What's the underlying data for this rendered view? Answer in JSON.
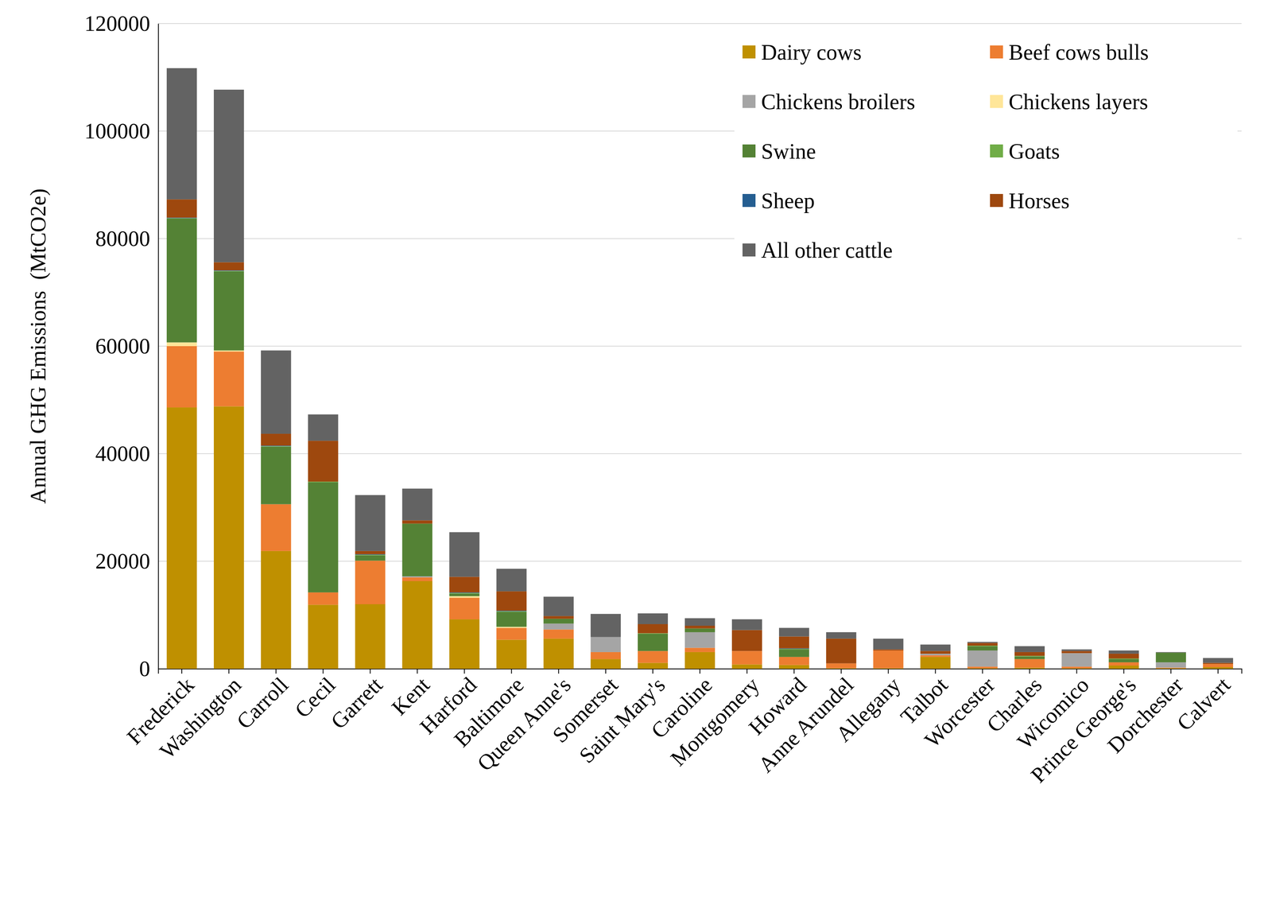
{
  "chart_data": {
    "type": "bar",
    "stacked": true,
    "grid": true,
    "legend": "top-right",
    "y_label": "Annual GHG Emissions  (MtCO2e)",
    "categories": [
      "Frederick",
      "Washington",
      "Carroll",
      "Cecil",
      "Garrett",
      "Kent",
      "Harford",
      "Baltimore",
      "Queen Anne's",
      "Somerset",
      "Saint Mary's",
      "Caroline",
      "Montgomery",
      "Howard",
      "Anne Arundel",
      "Allegany",
      "Talbot",
      "Worcester",
      "Charles",
      "Wicomico",
      "Prince George's",
      "Dorchester",
      "Calvert"
    ],
    "ylim": [
      0,
      120000
    ],
    "yticks": [
      0,
      20000,
      40000,
      60000,
      80000,
      100000,
      120000
    ],
    "series": [
      {
        "name": "Dairy cows",
        "color": "#bf9000",
        "values": [
          48600,
          48800,
          21900,
          11900,
          12000,
          16300,
          9200,
          5400,
          5600,
          1800,
          1100,
          3100,
          800,
          700,
          100,
          100,
          2200,
          100,
          200,
          100,
          600,
          100,
          300
        ]
      },
      {
        "name": "Beef cows bulls",
        "color": "#ed7d31",
        "values": [
          11400,
          10200,
          8700,
          2300,
          8100,
          700,
          4000,
          2200,
          1700,
          1300,
          2200,
          800,
          2500,
          1500,
          900,
          3300,
          300,
          300,
          1600,
          300,
          600,
          100,
          600
        ]
      },
      {
        "name": "Chickens broilers",
        "color": "#a5a5a5",
        "values": [
          0,
          0,
          0,
          0,
          0,
          200,
          0,
          0,
          1100,
          2800,
          0,
          2900,
          0,
          0,
          0,
          0,
          300,
          3000,
          0,
          2500,
          0,
          1000,
          0
        ]
      },
      {
        "name": "Chickens layers",
        "color": "#ffe699",
        "values": [
          700,
          200,
          0,
          0,
          0,
          0,
          300,
          200,
          0,
          0,
          0,
          0,
          0,
          0,
          0,
          0,
          0,
          0,
          0,
          0,
          0,
          0,
          0
        ]
      },
      {
        "name": "Swine",
        "color": "#548235",
        "values": [
          23000,
          14700,
          10700,
          20500,
          1000,
          9800,
          500,
          2800,
          900,
          0,
          3200,
          700,
          0,
          1400,
          0,
          0,
          0,
          800,
          500,
          0,
          600,
          1800,
          0
        ]
      },
      {
        "name": "Goats",
        "color": "#70ad47",
        "values": [
          100,
          100,
          100,
          100,
          100,
          0,
          100,
          100,
          0,
          0,
          100,
          0,
          0,
          100,
          0,
          0,
          0,
          100,
          100,
          0,
          100,
          0,
          0
        ]
      },
      {
        "name": "Sheep",
        "color": "#255e91",
        "values": [
          100,
          100,
          100,
          0,
          100,
          0,
          100,
          100,
          0,
          0,
          0,
          0,
          0,
          100,
          0,
          0,
          0,
          0,
          0,
          0,
          0,
          0,
          0
        ]
      },
      {
        "name": "Horses",
        "color": "#9e480e",
        "values": [
          3400,
          1500,
          2200,
          7600,
          600,
          600,
          2900,
          3600,
          500,
          0,
          1700,
          500,
          3900,
          2200,
          4600,
          200,
          500,
          500,
          700,
          400,
          900,
          0,
          200
        ]
      },
      {
        "name": "All other cattle",
        "color": "#636363",
        "values": [
          24400,
          32100,
          15500,
          4900,
          10400,
          5900,
          8300,
          4200,
          3600,
          4300,
          2000,
          1400,
          2000,
          1600,
          1200,
          2000,
          1200,
          200,
          1100,
          300,
          600,
          100,
          900
        ]
      }
    ]
  }
}
